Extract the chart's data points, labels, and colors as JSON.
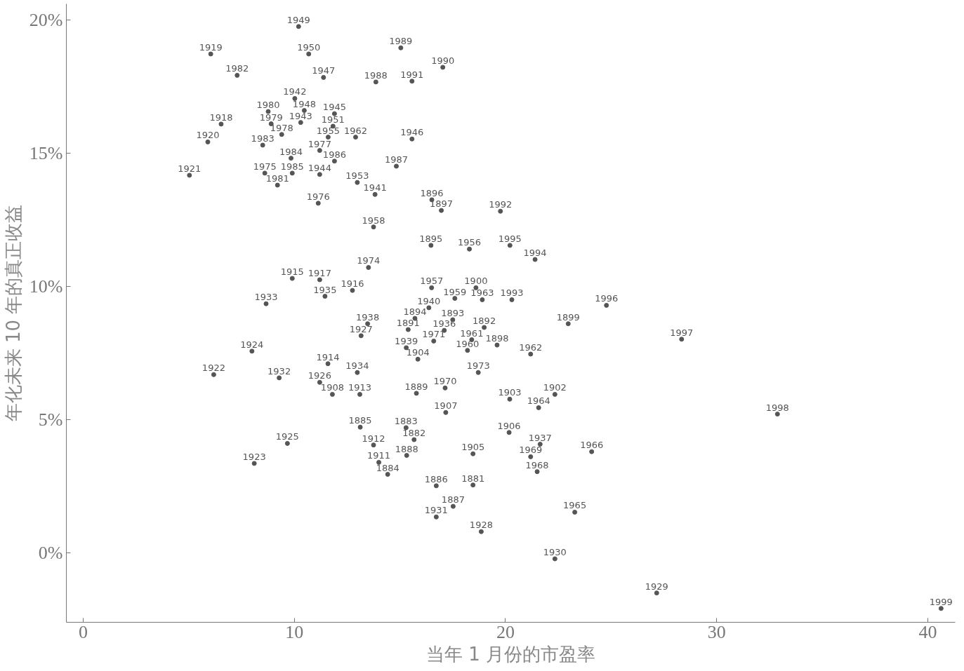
{
  "chart_data": {
    "type": "scatter",
    "xlabel": "当年 1 月份的市盈率",
    "ylabel": "年化未来 10 年的真正收益",
    "xlim": [
      -0.8,
      41.3
    ],
    "ylim": [
      -2.6,
      20.6
    ],
    "xticks": [
      0,
      10,
      20,
      30,
      40
    ],
    "yticks": [
      {
        "value": 0,
        "label": "0%"
      },
      {
        "value": 5,
        "label": "5%"
      },
      {
        "value": 10,
        "label": "10%"
      },
      {
        "value": 15,
        "label": "15%"
      },
      {
        "value": 20,
        "label": "20%"
      }
    ],
    "grid": false,
    "marker": "circle",
    "series": [
      {
        "color": "#555555",
        "x": [
          10.2,
          6.04,
          10.68,
          15.04,
          17.03,
          7.29,
          11.38,
          13.86,
          15.57,
          10.02,
          10.47,
          8.76,
          10.3,
          11.9,
          6.53,
          8.9,
          9.4,
          11.83,
          11.6,
          12.9,
          8.5,
          15.57,
          5.9,
          9.84,
          11.2,
          11.9,
          14.83,
          5.03,
          8.6,
          9.9,
          11.2,
          9.2,
          12.98,
          13.82,
          11.13,
          16.51,
          16.96,
          19.76,
          13.75,
          16.47,
          18.29,
          20.21,
          21.4,
          13.51,
          9.9,
          11.2,
          12.75,
          11.45,
          8.66,
          16.5,
          18.6,
          17.6,
          18.9,
          20.3,
          24.78,
          16.37,
          15.71,
          17.5,
          17.1,
          18.99,
          13.47,
          13.16,
          15.39,
          22.97,
          28.34,
          16.6,
          15.3,
          18.4,
          18.2,
          19.6,
          21.19,
          7.99,
          15.85,
          11.59,
          12.98,
          18.71,
          6.18,
          9.28,
          11.2,
          11.8,
          13.1,
          15.78,
          17.14,
          17.17,
          20.2,
          22.34,
          21.57,
          32.88,
          13.12,
          15.29,
          15.67,
          13.75,
          20.17,
          9.67,
          21.64,
          24.08,
          15.32,
          18.46,
          21.19,
          8.1,
          14.0,
          14.42,
          21.5,
          16.72,
          18.46,
          17.52,
          16.72,
          23.28,
          18.85,
          22.34,
          27.16,
          40.63
        ],
        "values": [
          19.75,
          18.72,
          18.72,
          18.95,
          18.22,
          17.92,
          17.84,
          17.67,
          17.7,
          17.05,
          16.6,
          16.56,
          16.15,
          16.48,
          16.09,
          16.1,
          15.7,
          16.01,
          15.6,
          15.6,
          15.3,
          15.53,
          15.42,
          14.81,
          15.1,
          14.7,
          14.51,
          14.17,
          14.25,
          14.25,
          14.2,
          13.8,
          13.9,
          13.45,
          13.12,
          13.25,
          12.85,
          12.82,
          12.23,
          11.54,
          11.4,
          11.54,
          11.01,
          10.71,
          10.3,
          10.25,
          9.85,
          9.63,
          9.35,
          9.95,
          9.95,
          9.55,
          9.5,
          9.5,
          9.29,
          9.2,
          8.8,
          8.75,
          8.35,
          8.46,
          8.6,
          8.15,
          8.38,
          8.6,
          8.02,
          7.95,
          7.7,
          8.0,
          7.6,
          7.8,
          7.46,
          7.57,
          7.27,
          7.1,
          6.77,
          6.77,
          6.69,
          6.57,
          6.4,
          5.95,
          5.95,
          5.99,
          6.19,
          5.27,
          5.77,
          5.95,
          5.45,
          5.21,
          4.72,
          4.7,
          4.25,
          4.05,
          4.52,
          4.11,
          4.08,
          3.8,
          3.66,
          3.72,
          3.61,
          3.36,
          3.4,
          2.95,
          3.05,
          2.52,
          2.55,
          1.75,
          1.35,
          1.53,
          0.8,
          -0.22,
          -1.5,
          -2.08
        ]
      }
    ],
    "annotations": [
      {
        "text": "1949",
        "x": 10.2,
        "y": 19.75
      },
      {
        "text": "1919",
        "x": 6.04,
        "y": 18.72
      },
      {
        "text": "1950",
        "x": 10.68,
        "y": 18.72
      },
      {
        "text": "1989",
        "x": 15.04,
        "y": 18.95
      },
      {
        "text": "1990",
        "x": 17.03,
        "y": 18.22
      },
      {
        "text": "1982",
        "x": 7.29,
        "y": 17.92
      },
      {
        "text": "1947",
        "x": 11.38,
        "y": 17.84
      },
      {
        "text": "1988",
        "x": 13.86,
        "y": 17.67
      },
      {
        "text": "1991",
        "x": 15.57,
        "y": 17.7
      },
      {
        "text": "1942",
        "x": 10.02,
        "y": 17.05
      },
      {
        "text": "1948",
        "x": 10.47,
        "y": 16.6
      },
      {
        "text": "1980",
        "x": 8.76,
        "y": 16.56
      },
      {
        "text": "1943",
        "x": 10.3,
        "y": 16.15
      },
      {
        "text": "1945",
        "x": 11.9,
        "y": 16.48
      },
      {
        "text": "1918",
        "x": 6.53,
        "y": 16.09
      },
      {
        "text": "1979",
        "x": 8.9,
        "y": 16.1
      },
      {
        "text": "1978",
        "x": 9.4,
        "y": 15.7
      },
      {
        "text": "1951",
        "x": 11.83,
        "y": 16.01
      },
      {
        "text": "1955",
        "x": 11.6,
        "y": 15.6
      },
      {
        "text": "1962",
        "x": 12.9,
        "y": 15.6
      },
      {
        "text": "1983",
        "x": 8.5,
        "y": 15.3
      },
      {
        "text": "1946",
        "x": 15.57,
        "y": 15.53
      },
      {
        "text": "1920",
        "x": 5.9,
        "y": 15.42
      },
      {
        "text": "1984",
        "x": 9.84,
        "y": 14.81
      },
      {
        "text": "1977",
        "x": 11.2,
        "y": 15.1
      },
      {
        "text": "1986",
        "x": 11.9,
        "y": 14.7
      },
      {
        "text": "1987",
        "x": 14.83,
        "y": 14.51
      },
      {
        "text": "1921",
        "x": 5.03,
        "y": 14.17
      },
      {
        "text": "1975",
        "x": 8.6,
        "y": 14.25
      },
      {
        "text": "1985",
        "x": 9.9,
        "y": 14.25
      },
      {
        "text": "1944",
        "x": 11.2,
        "y": 14.2
      },
      {
        "text": "1981",
        "x": 9.2,
        "y": 13.8
      },
      {
        "text": "1953",
        "x": 12.98,
        "y": 13.9
      },
      {
        "text": "1941",
        "x": 13.82,
        "y": 13.45
      },
      {
        "text": "1976",
        "x": 11.13,
        "y": 13.12
      },
      {
        "text": "1896",
        "x": 16.51,
        "y": 13.25
      },
      {
        "text": "1897",
        "x": 16.96,
        "y": 12.85
      },
      {
        "text": "1992",
        "x": 19.76,
        "y": 12.82
      },
      {
        "text": "1958",
        "x": 13.75,
        "y": 12.23
      },
      {
        "text": "1895",
        "x": 16.47,
        "y": 11.54
      },
      {
        "text": "1956",
        "x": 18.29,
        "y": 11.4
      },
      {
        "text": "1995",
        "x": 20.21,
        "y": 11.54
      },
      {
        "text": "1994",
        "x": 21.4,
        "y": 11.01
      },
      {
        "text": "1974",
        "x": 13.51,
        "y": 10.71
      },
      {
        "text": "1915",
        "x": 9.9,
        "y": 10.3
      },
      {
        "text": "1917",
        "x": 11.2,
        "y": 10.25
      },
      {
        "text": "1916",
        "x": 12.75,
        "y": 9.85
      },
      {
        "text": "1935",
        "x": 11.45,
        "y": 9.63
      },
      {
        "text": "1933",
        "x": 8.66,
        "y": 9.35
      },
      {
        "text": "1957",
        "x": 16.5,
        "y": 9.95
      },
      {
        "text": "1900",
        "x": 18.6,
        "y": 9.95
      },
      {
        "text": "1959",
        "x": 17.6,
        "y": 9.55
      },
      {
        "text": "1963",
        "x": 18.9,
        "y": 9.5
      },
      {
        "text": "1993",
        "x": 20.3,
        "y": 9.5
      },
      {
        "text": "1996",
        "x": 24.78,
        "y": 9.29
      },
      {
        "text": "1940",
        "x": 16.37,
        "y": 9.2
      },
      {
        "text": "1894",
        "x": 15.71,
        "y": 8.8
      },
      {
        "text": "1893",
        "x": 17.5,
        "y": 8.75
      },
      {
        "text": "1936",
        "x": 17.1,
        "y": 8.35
      },
      {
        "text": "1892",
        "x": 18.99,
        "y": 8.46
      },
      {
        "text": "1938",
        "x": 13.47,
        "y": 8.6
      },
      {
        "text": "1927",
        "x": 13.16,
        "y": 8.15
      },
      {
        "text": "1891",
        "x": 15.39,
        "y": 8.38
      },
      {
        "text": "1899",
        "x": 22.97,
        "y": 8.6
      },
      {
        "text": "1997",
        "x": 28.34,
        "y": 8.02
      },
      {
        "text": "1971",
        "x": 16.6,
        "y": 7.95
      },
      {
        "text": "1939",
        "x": 15.3,
        "y": 7.7
      },
      {
        "text": "1961",
        "x": 18.4,
        "y": 8.0
      },
      {
        "text": "1960",
        "x": 18.2,
        "y": 7.6
      },
      {
        "text": "1898",
        "x": 19.6,
        "y": 7.8
      },
      {
        "text": "1962",
        "x": 21.19,
        "y": 7.46
      },
      {
        "text": "1924",
        "x": 7.99,
        "y": 7.57
      },
      {
        "text": "1904",
        "x": 15.85,
        "y": 7.27
      },
      {
        "text": "1914",
        "x": 11.59,
        "y": 7.1
      },
      {
        "text": "1934",
        "x": 12.98,
        "y": 6.77
      },
      {
        "text": "1973",
        "x": 18.71,
        "y": 6.77
      },
      {
        "text": "1922",
        "x": 6.18,
        "y": 6.69
      },
      {
        "text": "1932",
        "x": 9.28,
        "y": 6.57
      },
      {
        "text": "1926",
        "x": 11.2,
        "y": 6.4
      },
      {
        "text": "1908",
        "x": 11.8,
        "y": 5.95
      },
      {
        "text": "1913",
        "x": 13.1,
        "y": 5.95
      },
      {
        "text": "1889",
        "x": 15.78,
        "y": 5.99
      },
      {
        "text": "1970",
        "x": 17.14,
        "y": 6.19
      },
      {
        "text": "1907",
        "x": 17.17,
        "y": 5.27
      },
      {
        "text": "1903",
        "x": 20.2,
        "y": 5.77
      },
      {
        "text": "1902",
        "x": 22.34,
        "y": 5.95
      },
      {
        "text": "1964",
        "x": 21.57,
        "y": 5.45
      },
      {
        "text": "1998",
        "x": 32.88,
        "y": 5.21
      },
      {
        "text": "1885",
        "x": 13.12,
        "y": 4.72
      },
      {
        "text": "1883",
        "x": 15.29,
        "y": 4.7
      },
      {
        "text": "1882",
        "x": 15.67,
        "y": 4.25
      },
      {
        "text": "1912",
        "x": 13.75,
        "y": 4.05
      },
      {
        "text": "1906",
        "x": 20.17,
        "y": 4.52
      },
      {
        "text": "1925",
        "x": 9.67,
        "y": 4.11
      },
      {
        "text": "1937",
        "x": 21.64,
        "y": 4.08
      },
      {
        "text": "1966",
        "x": 24.08,
        "y": 3.8
      },
      {
        "text": "1888",
        "x": 15.32,
        "y": 3.66
      },
      {
        "text": "1905",
        "x": 18.46,
        "y": 3.72
      },
      {
        "text": "1969",
        "x": 21.19,
        "y": 3.61
      },
      {
        "text": "1923",
        "x": 8.1,
        "y": 3.36
      },
      {
        "text": "1911",
        "x": 14.0,
        "y": 3.4
      },
      {
        "text": "1884",
        "x": 14.42,
        "y": 2.95
      },
      {
        "text": "1968",
        "x": 21.5,
        "y": 3.05
      },
      {
        "text": "1886",
        "x": 16.72,
        "y": 2.52
      },
      {
        "text": "1881",
        "x": 18.46,
        "y": 2.55
      },
      {
        "text": "1887",
        "x": 17.52,
        "y": 1.75
      },
      {
        "text": "1931",
        "x": 16.72,
        "y": 1.35
      },
      {
        "text": "1965",
        "x": 23.28,
        "y": 1.53
      },
      {
        "text": "1928",
        "x": 18.85,
        "y": 0.8
      },
      {
        "text": "1930",
        "x": 22.34,
        "y": -0.22
      },
      {
        "text": "1929",
        "x": 27.16,
        "y": -1.5
      },
      {
        "text": "1999",
        "x": 40.63,
        "y": -2.08
      }
    ]
  }
}
